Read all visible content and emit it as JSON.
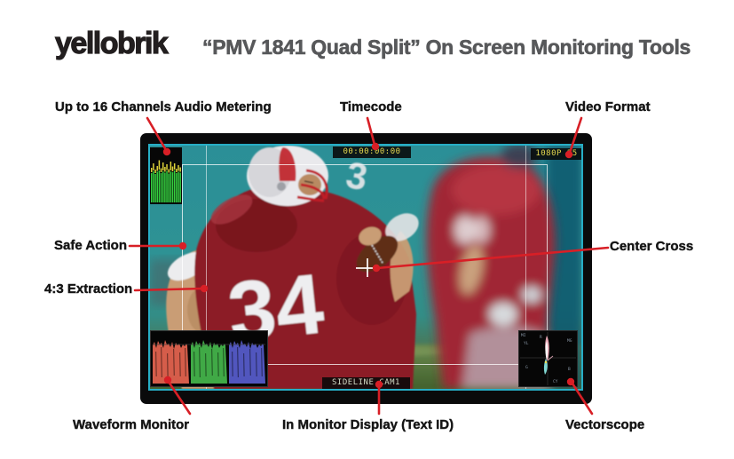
{
  "header": {
    "brand": "yellobrik",
    "title": "“PMV 1841 Quad Split” On Screen Monitoring Tools"
  },
  "callouts": {
    "audio_metering": "Up to 16 Channels Audio Metering",
    "timecode": "Timecode",
    "video_format": "Video Format",
    "safe_action": "Safe Action",
    "extraction_43": "4:3 Extraction",
    "center_cross": "Center Cross",
    "waveform": "Waveform Monitor",
    "imd": "In Monitor Display (Text ID)",
    "vectorscope": "Vectorscope"
  },
  "monitor": {
    "timecode": "00:00:00:00",
    "video_format": "1080P 25",
    "imd_text": "SIDELINE CAM1",
    "photo": {
      "jersey_number": "34",
      "shoulder_number": "3"
    },
    "audio_meter": {
      "channels": 16,
      "levels": [
        0.66,
        0.7,
        0.64,
        0.69,
        0.72,
        0.66,
        0.7,
        0.67,
        0.71,
        0.65,
        0.7,
        0.68,
        0.72,
        0.66,
        0.69,
        0.67
      ],
      "peaks": [
        0.78,
        0.88,
        0.74,
        0.82,
        0.95,
        0.77,
        0.9,
        0.8,
        0.86,
        0.75,
        0.92,
        0.81,
        0.88,
        0.76,
        0.84,
        0.79
      ]
    },
    "vectorscope": {
      "corner_label": "MI",
      "graticule_labels": [
        "YL",
        "R",
        "MG",
        "B",
        "CY",
        "G"
      ]
    }
  },
  "colors": {
    "callout_red": "#d81f26",
    "screen_border_cyan": "#27aec6",
    "meter_green": "#35d13f",
    "meter_peak_yellow": "#ded23a",
    "osd_yellow": "#e6d94f",
    "imd_text_green": "#d4dcc6",
    "waveform_red": "#e0624e",
    "waveform_green": "#43b24a",
    "waveform_blue": "#555bc8"
  }
}
